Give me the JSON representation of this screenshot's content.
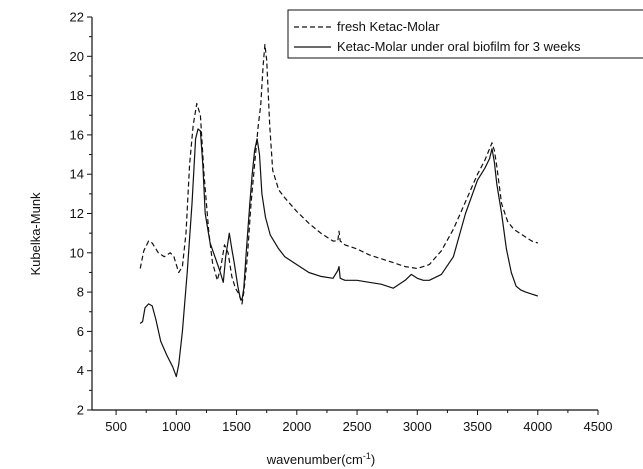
{
  "chart_data": {
    "type": "line",
    "xlabel": "wavenumber(cm",
    "xlabel_sup": "-1",
    "xlabel_end": ")",
    "ylabel": "Kubelka-Munk",
    "xlim": [
      300,
      4500
    ],
    "ylim": [
      2,
      22
    ],
    "x_ticks": [
      500,
      1000,
      1500,
      2000,
      2500,
      3000,
      3500,
      4000,
      4500
    ],
    "y_ticks": [
      2,
      4,
      6,
      8,
      10,
      12,
      14,
      16,
      18,
      20,
      22
    ],
    "legend_position": "top-right",
    "series": [
      {
        "name": "fresh Ketac-Molar",
        "style": "dashed",
        "color": "#111111",
        "x": [
          700,
          730,
          770,
          800,
          850,
          900,
          950,
          980,
          1000,
          1020,
          1050,
          1080,
          1110,
          1140,
          1170,
          1200,
          1230,
          1270,
          1300,
          1340,
          1370,
          1400,
          1430,
          1460,
          1490,
          1520,
          1545,
          1560,
          1590,
          1620,
          1650,
          1680,
          1700,
          1720,
          1735,
          1750,
          1775,
          1800,
          1850,
          1900,
          2000,
          2100,
          2200,
          2300,
          2340,
          2350,
          2360,
          2400,
          2500,
          2600,
          2700,
          2800,
          2900,
          3000,
          3100,
          3200,
          3300,
          3400,
          3500,
          3560,
          3600,
          3620,
          3640,
          3660,
          3700,
          3750,
          3800,
          3850,
          3900,
          3950,
          4000
        ],
        "values": [
          9.2,
          10.1,
          10.6,
          10.5,
          10.0,
          9.8,
          10.0,
          9.8,
          9.4,
          9.0,
          9.3,
          11.0,
          14.5,
          16.5,
          17.6,
          17.0,
          14.0,
          11.0,
          9.5,
          8.6,
          9.3,
          10.4,
          10.0,
          8.8,
          8.2,
          7.9,
          7.4,
          8.0,
          9.8,
          12.5,
          14.5,
          16.5,
          17.5,
          19.5,
          20.6,
          19.8,
          16.5,
          14.2,
          13.2,
          12.8,
          12.1,
          11.5,
          11.0,
          10.6,
          10.6,
          11.1,
          10.6,
          10.4,
          10.2,
          9.9,
          9.7,
          9.5,
          9.3,
          9.2,
          9.4,
          10.1,
          11.2,
          12.6,
          14.0,
          14.7,
          15.3,
          15.6,
          15.2,
          14.4,
          12.5,
          11.6,
          11.2,
          11.0,
          10.8,
          10.6,
          10.5
        ]
      },
      {
        "name": "Ketac-Molar under oral biofilm for 3 weeks",
        "style": "solid",
        "color": "#111111",
        "x": [
          700,
          720,
          740,
          770,
          800,
          830,
          870,
          920,
          970,
          1000,
          1020,
          1050,
          1090,
          1130,
          1160,
          1180,
          1200,
          1220,
          1240,
          1280,
          1320,
          1360,
          1390,
          1410,
          1440,
          1460,
          1480,
          1510,
          1530,
          1545,
          1560,
          1580,
          1610,
          1630,
          1650,
          1670,
          1690,
          1710,
          1740,
          1780,
          1850,
          1900,
          2000,
          2100,
          2200,
          2300,
          2340,
          2350,
          2360,
          2400,
          2500,
          2600,
          2700,
          2800,
          2900,
          2950,
          3000,
          3050,
          3100,
          3200,
          3300,
          3400,
          3500,
          3560,
          3600,
          3620,
          3640,
          3660,
          3700,
          3740,
          3780,
          3820,
          3860,
          3900,
          3950,
          4000
        ],
        "values": [
          6.4,
          6.5,
          7.2,
          7.4,
          7.3,
          6.6,
          5.5,
          4.8,
          4.2,
          3.7,
          4.3,
          6.0,
          9.0,
          12.5,
          15.8,
          16.3,
          16.2,
          14.5,
          12.0,
          10.5,
          9.8,
          9.1,
          8.5,
          9.8,
          11.0,
          10.2,
          9.5,
          8.3,
          7.7,
          7.6,
          8.2,
          10.0,
          12.5,
          14.0,
          15.2,
          15.8,
          15.0,
          13.0,
          11.8,
          10.9,
          10.2,
          9.8,
          9.4,
          9.0,
          8.8,
          8.7,
          9.1,
          9.3,
          8.7,
          8.6,
          8.6,
          8.5,
          8.4,
          8.2,
          8.6,
          8.9,
          8.7,
          8.6,
          8.6,
          8.9,
          9.8,
          12.0,
          13.7,
          14.3,
          14.8,
          15.3,
          14.6,
          13.5,
          12.0,
          10.2,
          9.0,
          8.3,
          8.1,
          8.0,
          7.9,
          7.8
        ]
      }
    ]
  }
}
